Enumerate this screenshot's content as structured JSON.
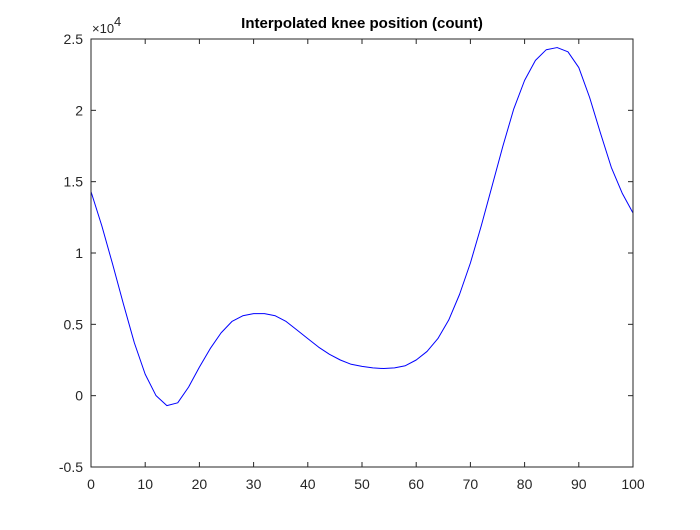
{
  "chart_data": {
    "type": "line",
    "title": "Interpolated knee position (count)",
    "xlabel": "",
    "ylabel": "",
    "xlim": [
      0,
      100
    ],
    "ylim": [
      -0.5,
      2.5
    ],
    "xticks": [
      0,
      10,
      20,
      30,
      40,
      50,
      60,
      70,
      80,
      90,
      100
    ],
    "yticks": [
      -0.5,
      0,
      0.5,
      1,
      1.5,
      2,
      2.5
    ],
    "ytick_labels": [
      "-0.5",
      "0",
      "0.5",
      "1",
      "1.5",
      "2",
      "2.5"
    ],
    "y_exponent_base": "×10",
    "y_exponent_power": "4",
    "grid": false,
    "series": [
      {
        "color": "#0000ff",
        "x": [
          0,
          2,
          4,
          6,
          8,
          10,
          12,
          14,
          16,
          18,
          20,
          22,
          24,
          26,
          28,
          30,
          32,
          34,
          36,
          38,
          40,
          42,
          44,
          46,
          48,
          50,
          52,
          54,
          56,
          58,
          60,
          62,
          64,
          66,
          68,
          70,
          72,
          74,
          76,
          78,
          80,
          82,
          84,
          86,
          88,
          90,
          92,
          94,
          96,
          98,
          100
        ],
        "y": [
          1.43,
          1.19,
          0.92,
          0.64,
          0.37,
          0.15,
          0.0,
          -0.07,
          -0.05,
          0.06,
          0.2,
          0.33,
          0.44,
          0.52,
          0.56,
          0.575,
          0.575,
          0.56,
          0.52,
          0.46,
          0.4,
          0.34,
          0.29,
          0.25,
          0.22,
          0.205,
          0.195,
          0.19,
          0.195,
          0.21,
          0.25,
          0.31,
          0.4,
          0.53,
          0.71,
          0.93,
          1.19,
          1.47,
          1.75,
          2.01,
          2.21,
          2.35,
          2.425,
          2.44,
          2.41,
          2.3,
          2.09,
          1.84,
          1.6,
          1.42,
          1.28
        ]
      }
    ]
  }
}
